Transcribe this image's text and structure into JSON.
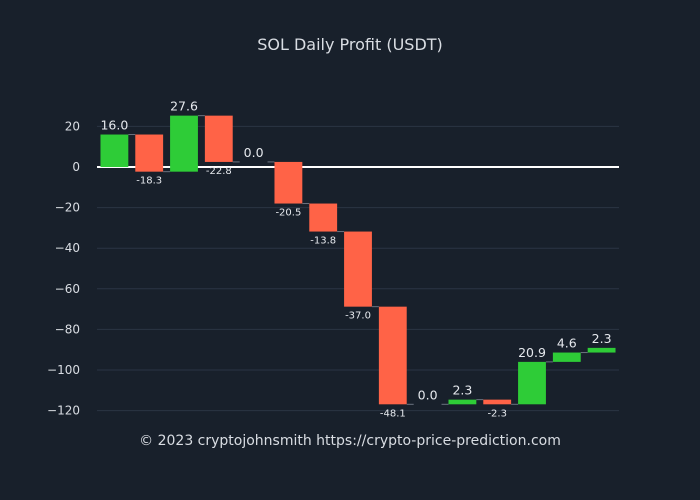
{
  "chart_data": {
    "type": "bar",
    "subtype": "waterfall",
    "title": "SOL Daily Profit (USDT)",
    "xlabel": "",
    "ylabel": "",
    "ylim": [
      -125,
      40
    ],
    "yticks": [
      20,
      0,
      -20,
      -40,
      -60,
      -80,
      -100,
      -120
    ],
    "ytick_labels": [
      "20",
      "0",
      "−20",
      "−40",
      "−60",
      "−80",
      "−100",
      "−120"
    ],
    "values": [
      16.0,
      -18.3,
      27.6,
      -22.8,
      0.0,
      -20.5,
      -13.8,
      -37.0,
      -48.1,
      0.0,
      2.3,
      -2.3,
      20.9,
      4.6,
      2.3
    ],
    "labels": [
      "16.0",
      "-18.3",
      "27.6",
      "-22.8",
      "0.0",
      "-20.5",
      "-13.8",
      "-37.0",
      "-48.1",
      "0.0",
      "2.3",
      "-2.3",
      "20.9",
      "4.6",
      "2.3"
    ],
    "start_offset": 0,
    "grid": true,
    "zero_line": true,
    "colors": {
      "background": "#18202b",
      "increase": "#2ecc37",
      "decrease": "#ff6347",
      "grid": "#2a3444",
      "zero_line": "#ffffff",
      "text": "#d9dde3"
    }
  },
  "footer": {
    "text": "© 2023 cryptojohnsmith  https://crypto-price-prediction.com"
  }
}
